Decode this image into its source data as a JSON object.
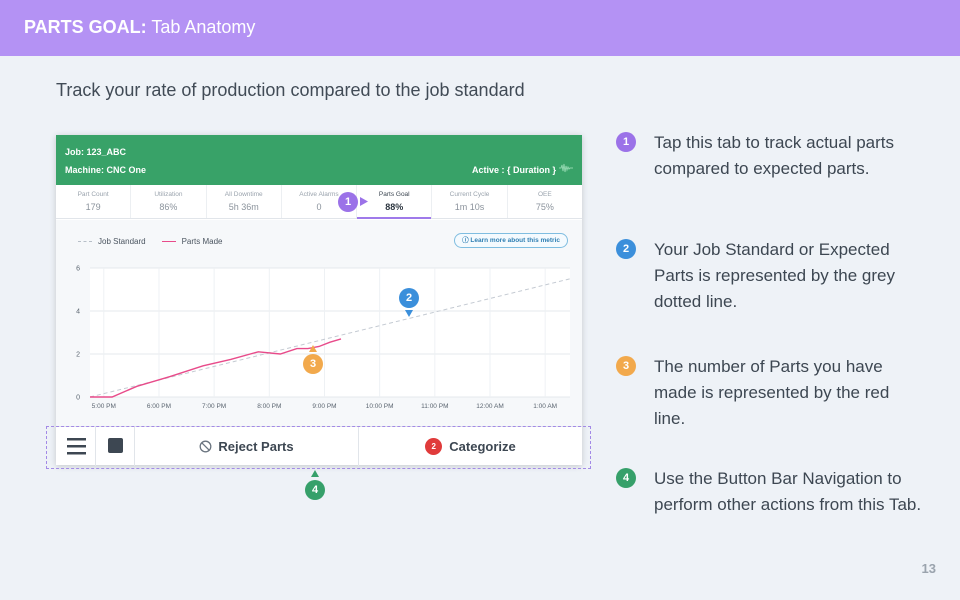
{
  "header": {
    "title_bold": "PARTS GOAL:",
    "title_rest": " Tab Anatomy"
  },
  "subtitle": "Track your rate of production compared to the job standard",
  "device": {
    "job_line": "Job: 123_ABC",
    "machine_line": "Machine: CNC One",
    "active_duration": "Active : { Duration }",
    "tabs": [
      {
        "label": "Part Count",
        "value": "179"
      },
      {
        "label": "Utilization",
        "value": "86%"
      },
      {
        "label": "All Downtime",
        "value": "5h 36m"
      },
      {
        "label": "Active Alarms",
        "value": "0"
      },
      {
        "label": "Parts Goal",
        "value": "88%"
      },
      {
        "label": "Current Cycle",
        "value": "1m 10s"
      },
      {
        "label": "OEE",
        "value": "75%"
      }
    ],
    "legend": {
      "standard": "Job Standard",
      "made": "Parts Made"
    },
    "learn_more": "Learn more about this metric",
    "button_bar": {
      "reject": "Reject Parts",
      "categorize": "Categorize",
      "categorize_count": "2"
    }
  },
  "chart_data": {
    "type": "line",
    "title": "",
    "xlabel": "",
    "ylabel": "",
    "categories": [
      "5:00 PM",
      "6:00 PM",
      "7:00 PM",
      "8:00 PM",
      "9:00 PM",
      "10:00 PM",
      "11:00 PM",
      "12:00 AM",
      "1:00 AM"
    ],
    "y_ticks": [
      "0",
      "2",
      "4",
      "6"
    ],
    "xlim": [
      -0.25,
      8.45
    ],
    "ylim": [
      0,
      6
    ],
    "series": [
      {
        "name": "Job Standard",
        "style": "dashed",
        "color": "#c4cad2",
        "x": [
          -0.25,
          8.45
        ],
        "y": [
          0,
          5.5
        ]
      },
      {
        "name": "Parts Made",
        "style": "solid",
        "color": "#e84b8a",
        "x": [
          -0.25,
          0.15,
          0.6,
          1.2,
          1.8,
          2.3,
          2.8,
          3.2,
          3.5,
          3.7,
          3.9,
          4.1,
          4.3
        ],
        "y": [
          0,
          0,
          0.5,
          0.95,
          1.45,
          1.75,
          2.1,
          2.0,
          2.25,
          2.25,
          2.35,
          2.55,
          2.7
        ]
      }
    ]
  },
  "annotations": [
    {
      "num": "1",
      "text": "Tap this tab to track actual parts compared to expected parts."
    },
    {
      "num": "2",
      "text": "Your Job Standard or Expected Parts is represented by the grey dotted line."
    },
    {
      "num": "3",
      "text": "The number of Parts you have made is represented by the red line."
    },
    {
      "num": "4",
      "text": "Use the Button Bar Navigation to perform other actions from this Tab."
    }
  ],
  "page_number": "13",
  "colors": {
    "purple": "#b492f4",
    "green": "#38a268",
    "red_line": "#e84b8a",
    "blue": "#3b8fdb",
    "orange": "#f2a94c"
  }
}
